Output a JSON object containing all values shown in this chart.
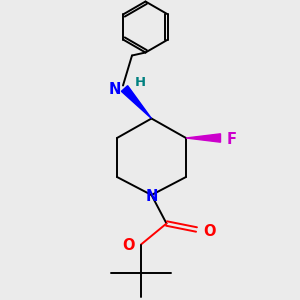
{
  "bg_color": "#ebebeb",
  "atom_colors": {
    "N": "#0000ff",
    "NH": "#008080",
    "F": "#cc00cc",
    "O": "#ff0000",
    "C": "#000000"
  },
  "lw": 1.4,
  "fs": 10.5
}
